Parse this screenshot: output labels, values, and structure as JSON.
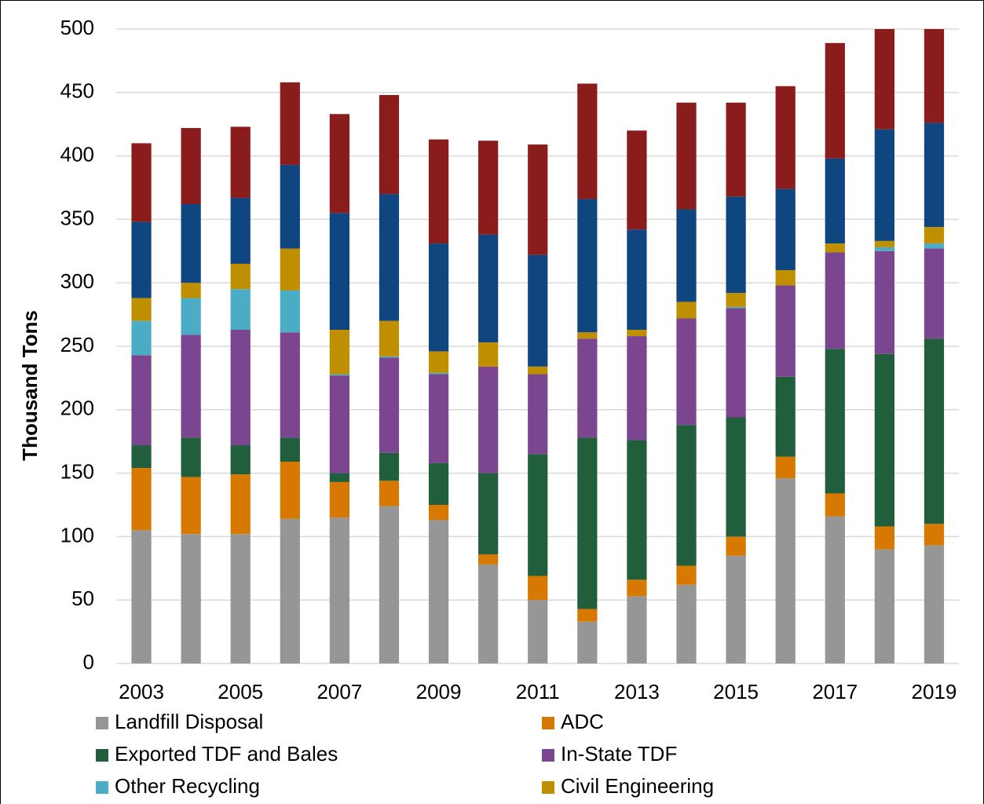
{
  "chart_data": {
    "type": "stacked_bar",
    "y_label": "Thousand Tons",
    "categories": [
      "2003",
      null,
      "2005",
      null,
      "2007",
      null,
      "2009",
      null,
      "2011",
      null,
      "2013",
      null,
      "2015",
      null,
      "2017",
      null,
      "2019"
    ],
    "series": [
      {
        "name": "Landfill Disposal",
        "color": "#969696",
        "values": [
          105,
          102,
          102,
          114,
          115,
          124,
          113,
          78,
          50,
          33,
          53,
          62,
          85,
          146,
          116,
          90,
          93
        ]
      },
      {
        "name": "ADC",
        "color": "#d77800",
        "values": [
          49,
          45,
          47,
          45,
          28,
          20,
          12,
          8,
          19,
          10,
          13,
          15,
          15,
          17,
          18,
          18,
          17
        ]
      },
      {
        "name": "Exported TDF and Bales",
        "color": "#215f3c",
        "values": [
          18,
          31,
          23,
          19,
          7,
          22,
          33,
          64,
          96,
          135,
          110,
          111,
          94,
          63,
          114,
          136,
          146
        ]
      },
      {
        "name": "In-State TDF",
        "color": "#7b4590",
        "values": [
          71,
          81,
          91,
          83,
          77,
          75,
          70,
          84,
          63,
          78,
          82,
          84,
          86,
          72,
          76,
          81,
          71
        ]
      },
      {
        "name": "Other Recycling",
        "color": "#4bacc6",
        "values": [
          27,
          29,
          32,
          33,
          1,
          1,
          1,
          0,
          0,
          0,
          0,
          0,
          1,
          0,
          0,
          3,
          4
        ]
      },
      {
        "name": "Civil Engineering",
        "color": "#bf8f00",
        "values": [
          18,
          12,
          20,
          33,
          35,
          28,
          17,
          19,
          6,
          5,
          5,
          13,
          11,
          12,
          7,
          5,
          13
        ]
      },
      {
        "color": "#0f4680",
        "values": [
          60,
          62,
          52,
          66,
          92,
          100,
          85,
          85,
          88,
          105,
          79,
          73,
          76,
          64,
          67,
          88,
          82
        ]
      },
      {
        "color": "#8b1c1c",
        "values": [
          62,
          60,
          56,
          65,
          78,
          78,
          82,
          74,
          87,
          91,
          78,
          84,
          74,
          81,
          91,
          79,
          74
        ]
      }
    ],
    "ylim": [
      0,
      500
    ],
    "yticks": [
      0,
      50,
      100,
      150,
      200,
      250,
      300,
      350,
      400,
      450,
      500
    ],
    "grid": true
  }
}
